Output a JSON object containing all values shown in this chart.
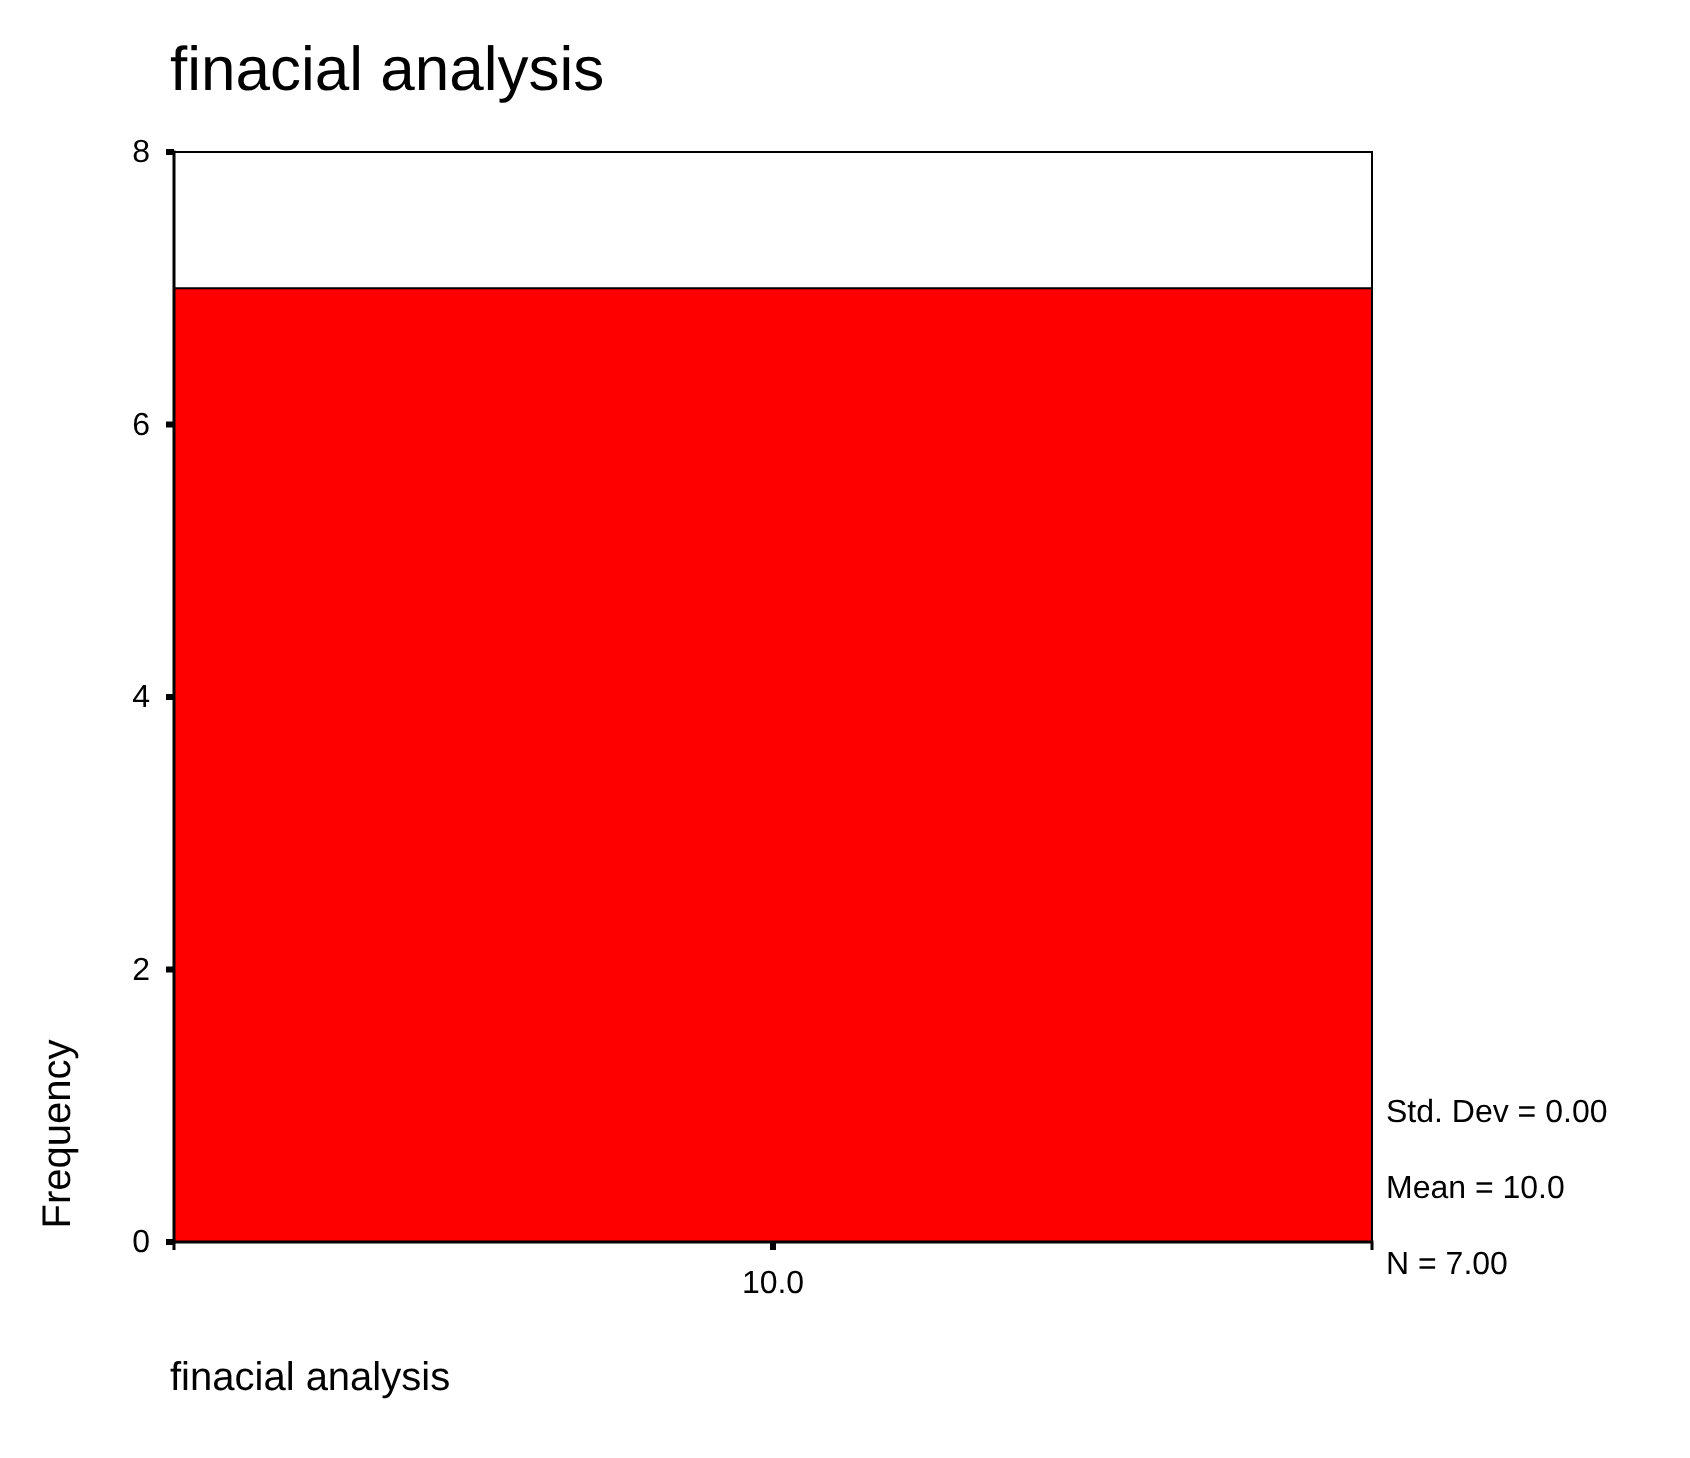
{
  "chart_data": {
    "type": "bar",
    "title": "finacial analysis",
    "xlabel": "finacial analysis",
    "ylabel": "Frequency",
    "categories": [
      "10.0"
    ],
    "values": [
      7
    ],
    "color": "#ff0000",
    "ylim": [
      0,
      8
    ],
    "yticks": [
      0,
      2,
      4,
      6,
      8
    ],
    "annotations": [
      "Std. Dev = 0.00",
      "Mean = 10.0",
      "N = 7.00"
    ]
  }
}
